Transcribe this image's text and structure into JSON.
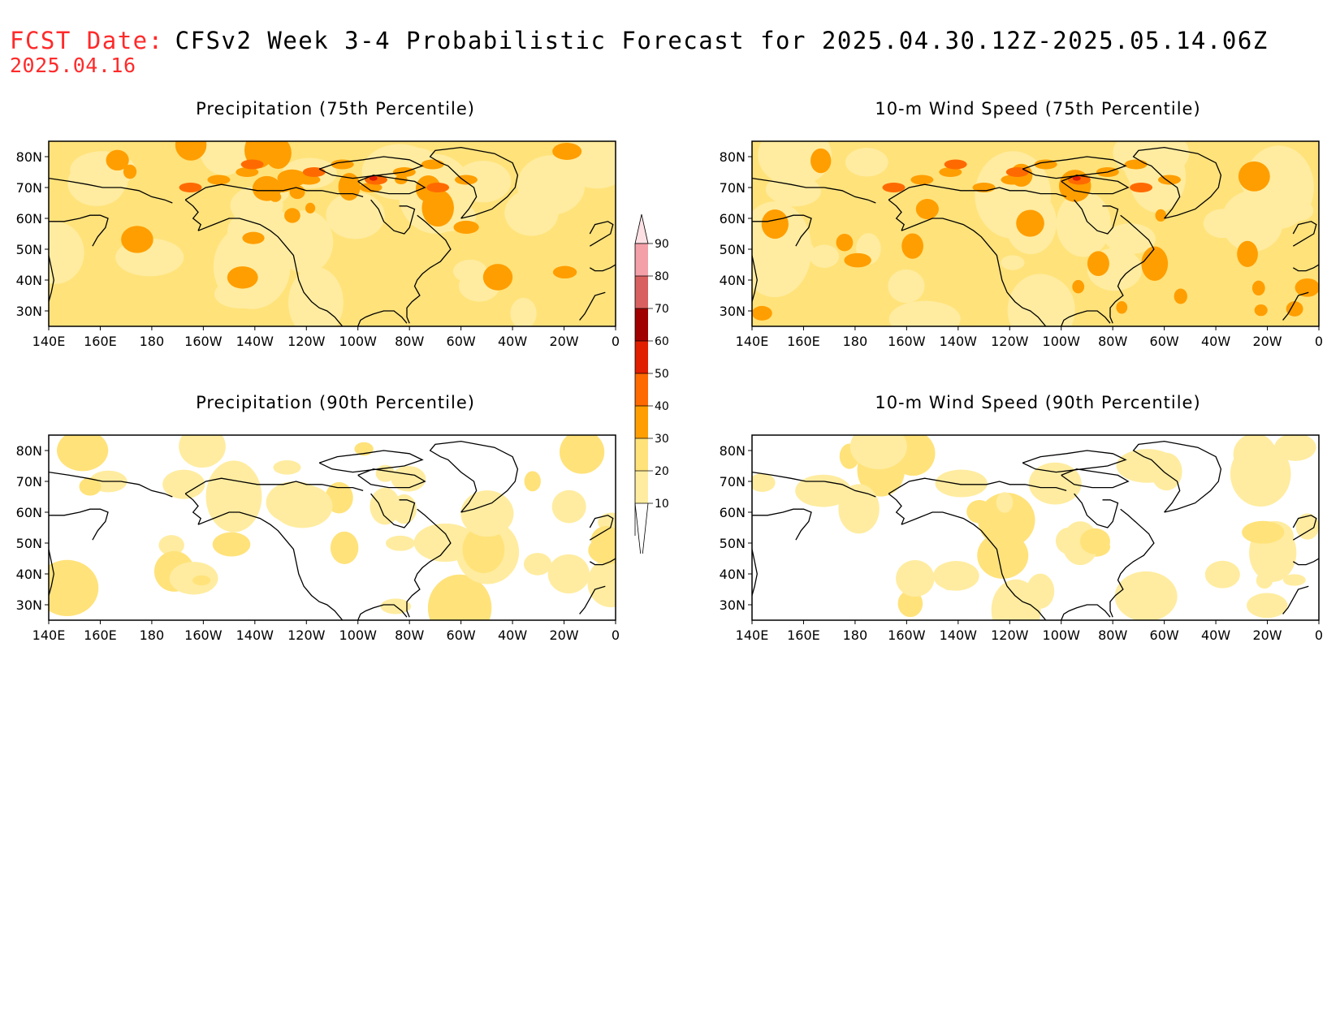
{
  "header": {
    "fcst_label": "FCST Date:",
    "fcst_date": "2025.04.16",
    "title": "CFSv2 Week 3-4 Probabilistic Forecast for 2025.04.30.12Z-2025.05.14.06Z"
  },
  "axes": {
    "lat_ticks": [
      "80N",
      "70N",
      "60N",
      "50N",
      "40N",
      "30N"
    ],
    "lon_ticks": [
      "140E",
      "160E",
      "180",
      "160W",
      "140W",
      "120W",
      "100W",
      "80W",
      "60W",
      "40W",
      "20W",
      "0"
    ]
  },
  "panels": [
    {
      "title": "Precipitation (75th Percentile)",
      "intensity": "high"
    },
    {
      "title": "10-m Wind Speed (75th Percentile)",
      "intensity": "high"
    },
    {
      "title": "Precipitation (90th Percentile)",
      "intensity": "low"
    },
    {
      "title": "10-m Wind Speed (90th Percentile)",
      "intensity": "low"
    }
  ],
  "colorbar": {
    "labels": [
      "90",
      "80",
      "70",
      "60",
      "50",
      "40",
      "30",
      "20",
      "10"
    ],
    "colors": [
      "#ffffff",
      "#ffeca0",
      "#ffe27a",
      "#ff9e00",
      "#ff6a00",
      "#e01e00",
      "#a00000",
      "#d96060",
      "#f4a0a8"
    ]
  }
}
